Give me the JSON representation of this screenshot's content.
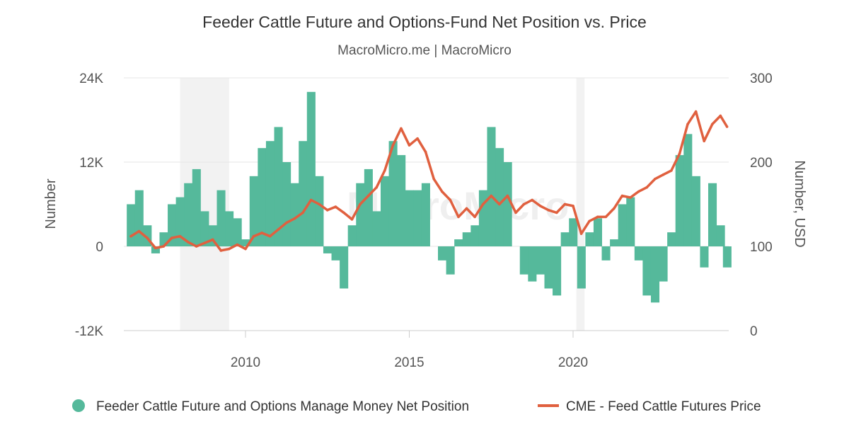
{
  "chart_data": {
    "type": "bar+line",
    "title": "Feeder Cattle Future and Options-Fund Net Position vs. Price",
    "subtitle": "MacroMicro.me | MacroMicro",
    "watermark": "MacroMicro",
    "ylabel_left": "Number",
    "ylabel_right": "Number, USD",
    "ylim_left": [
      -12000,
      24000
    ],
    "ylim_right": [
      0,
      300
    ],
    "left_ticks": [
      {
        "v": 24000,
        "label": "24K"
      },
      {
        "v": 12000,
        "label": "12K"
      },
      {
        "v": 0,
        "label": "0"
      },
      {
        "v": -12000,
        "label": "-12K"
      }
    ],
    "right_ticks": [
      {
        "v": 300,
        "label": "300"
      },
      {
        "v": 200,
        "label": "200"
      },
      {
        "v": 100,
        "label": "100"
      },
      {
        "v": 0,
        "label": "0"
      }
    ],
    "xlim": [
      2006.3,
      2024.8
    ],
    "x_ticks": [
      {
        "v": 2010,
        "label": "2010"
      },
      {
        "v": 2015,
        "label": "2015"
      },
      {
        "v": 2020,
        "label": "2020"
      }
    ],
    "recessions": [
      [
        2008.0,
        2009.5
      ],
      [
        2020.1,
        2020.35
      ]
    ],
    "grid": true,
    "legend_position": "bottom",
    "x": [
      2006.5,
      2006.75,
      2007,
      2007.25,
      2007.5,
      2007.75,
      2008,
      2008.25,
      2008.5,
      2008.75,
      2009,
      2009.25,
      2009.5,
      2009.75,
      2010,
      2010.25,
      2010.5,
      2010.75,
      2011,
      2011.25,
      2011.5,
      2011.75,
      2012,
      2012.25,
      2012.5,
      2012.75,
      2013,
      2013.25,
      2013.5,
      2013.75,
      2014,
      2014.25,
      2014.5,
      2014.75,
      2015,
      2015.25,
      2015.5,
      2015.75,
      2016,
      2016.25,
      2016.5,
      2016.75,
      2017,
      2017.25,
      2017.5,
      2017.75,
      2018,
      2018.25,
      2018.5,
      2018.75,
      2019,
      2019.25,
      2019.5,
      2019.75,
      2020,
      2020.25,
      2020.5,
      2020.75,
      2021,
      2021.25,
      2021.5,
      2021.75,
      2022,
      2022.25,
      2022.5,
      2022.75,
      2023,
      2023.25,
      2023.5,
      2023.75,
      2024,
      2024.25,
      2024.5,
      2024.7
    ],
    "series": [
      {
        "name": "Feeder Cattle Future and Options Manage Money Net Position",
        "type": "bar",
        "axis": "left",
        "color": "#55b99b",
        "values": [
          6000,
          8000,
          3000,
          -1000,
          2000,
          6000,
          7000,
          9000,
          11000,
          5000,
          3000,
          8000,
          5000,
          4000,
          1000,
          10000,
          14000,
          15000,
          17000,
          12000,
          9000,
          15000,
          22000,
          10000,
          -1000,
          -2000,
          -6000,
          3000,
          9000,
          11000,
          5000,
          10000,
          15000,
          13000,
          8000,
          8000,
          9000,
          0,
          -2000,
          -4000,
          1000,
          2000,
          3000,
          8000,
          17000,
          14000,
          12000,
          0,
          -4000,
          -5000,
          -4000,
          -6000,
          -7000,
          2000,
          4000,
          -6000,
          2000,
          4000,
          -2000,
          1000,
          6000,
          7000,
          -2000,
          -7000,
          -8000,
          -5000,
          2000,
          13000,
          16000,
          10000,
          -3000,
          9000,
          3000,
          -3000
        ]
      },
      {
        "name": "CME - Feed Cattle Futures Price",
        "type": "line",
        "axis": "right",
        "color": "#e0603f",
        "values": [
          112,
          118,
          110,
          98,
          100,
          110,
          112,
          105,
          100,
          104,
          108,
          95,
          97,
          102,
          97,
          112,
          116,
          112,
          120,
          128,
          133,
          140,
          155,
          150,
          143,
          147,
          140,
          132,
          150,
          160,
          170,
          190,
          220,
          240,
          220,
          228,
          212,
          180,
          165,
          155,
          135,
          145,
          135,
          150,
          160,
          150,
          160,
          140,
          150,
          155,
          148,
          143,
          140,
          150,
          148,
          115,
          130,
          135,
          135,
          145,
          160,
          158,
          165,
          170,
          180,
          185,
          190,
          210,
          245,
          260,
          225,
          245,
          255,
          242
        ]
      }
    ]
  }
}
